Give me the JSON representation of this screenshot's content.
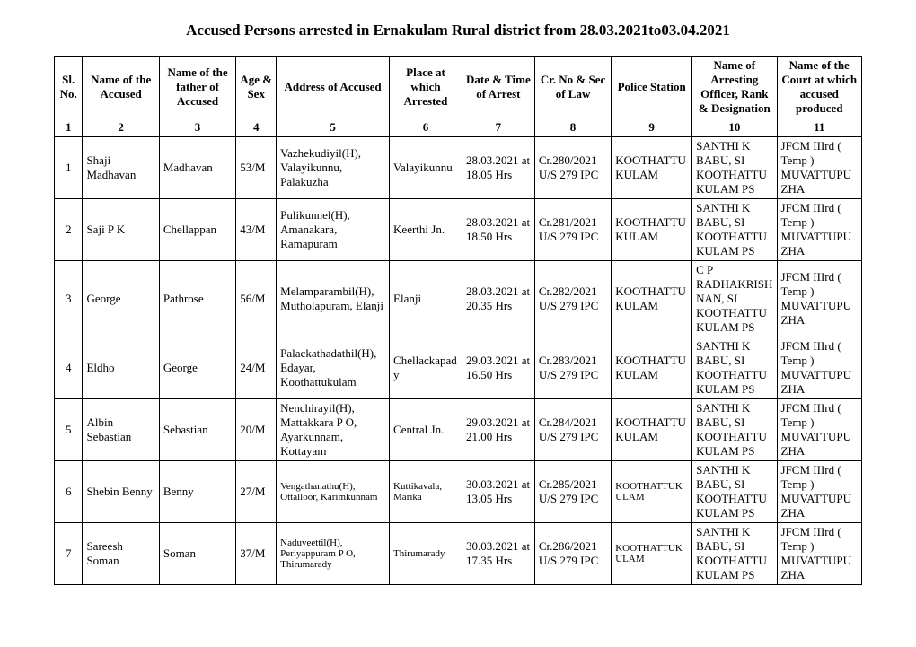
{
  "title": "Accused Persons arrested in  Ernakulam Rural  district from  28.03.2021to03.04.2021",
  "columns": [
    "Sl. No.",
    "Name of the Accused",
    "Name of the father of Accused",
    "Age & Sex",
    "Address of Accused",
    "Place at which Arrested",
    "Date & Time of Arrest",
    "Cr. No & Sec of Law",
    "Police Station",
    "Name of Arresting Officer, Rank & Designation",
    "Name of the Court at which accused produced"
  ],
  "colnums": [
    "1",
    "2",
    "3",
    "4",
    "5",
    "6",
    "7",
    "8",
    "9",
    "10",
    "11"
  ],
  "rows": [
    {
      "sl": "1",
      "name": "Shaji Madhavan",
      "father": "Madhavan",
      "age": "53/M",
      "address": "Vazhekudiyil(H), Valayikunnu, Palakuzha",
      "place": "Valayikunnu",
      "datetime": "28.03.2021 at 18.05 Hrs",
      "crno": "Cr.280/2021 U/S 279 IPC",
      "ps": "KOOTHATTUKULAM",
      "officer": "SANTHI K BABU, SI KOOTHATTUKULAM PS",
      "court": "JFCM IIIrd ( Temp ) MUVATTUPUZHA"
    },
    {
      "sl": "2",
      "name": "Saji P K",
      "father": "Chellappan",
      "age": "43/M",
      "address": "Pulikunnel(H), Amanakara, Ramapuram",
      "place": "Keerthi Jn.",
      "datetime": "28.03.2021 at 18.50 Hrs",
      "crno": "Cr.281/2021 U/S 279 IPC",
      "ps": "KOOTHATTUKULAM",
      "officer": "SANTHI K BABU, SI KOOTHATTUKULAM PS",
      "court": "JFCM IIIrd ( Temp ) MUVATTUPUZHA"
    },
    {
      "sl": "3",
      "name": "George",
      "father": "Pathrose",
      "age": "56/M",
      "address": "Melamparambil(H), Mutholapuram, Elanji",
      "place": "Elanji",
      "datetime": "28.03.2021 at 20.35 Hrs",
      "crno": "Cr.282/2021 U/S 279 IPC",
      "ps": "KOOTHATTUKULAM",
      "officer": "C P RADHAKRISHNAN, SI KOOTHATTUKULAM PS",
      "court": "JFCM IIIrd ( Temp ) MUVATTUPUZHA"
    },
    {
      "sl": "4",
      "name": "Eldho",
      "father": "George",
      "age": "24/M",
      "address": "Palackathadathil(H), Edayar, Koothattukulam",
      "place": "Chellackapady",
      "datetime": "29.03.2021 at 16.50 Hrs",
      "crno": "Cr.283/2021 U/S 279 IPC",
      "ps": "KOOTHATTUKULAM",
      "officer": "SANTHI K BABU, SI KOOTHATTUKULAM PS",
      "court": "JFCM IIIrd ( Temp ) MUVATTUPUZHA"
    },
    {
      "sl": "5",
      "name": "Albin Sebastian",
      "father": "Sebastian",
      "age": "20/M",
      "address": "Nenchirayil(H), Mattakkara P O, Ayarkunnam, Kottayam",
      "place": "Central Jn.",
      "datetime": "29.03.2021 at 21.00 Hrs",
      "crno": "Cr.284/2021 U/S 279 IPC",
      "ps": "KOOTHATTUKULAM",
      "officer": "SANTHI K BABU, SI KOOTHATTUKULAM PS",
      "court": "JFCM IIIrd ( Temp ) MUVATTUPUZHA"
    },
    {
      "sl": "6",
      "name": "Shebin Benny",
      "father": "Benny",
      "age": "27/M",
      "address": "Vengathanathu(H), Ottalloor, Karimkunnam",
      "place": "Kuttikavala, Marika",
      "datetime": "30.03.2021 at 13.05 Hrs",
      "crno": "Cr.285/2021 U/S 279 IPC",
      "ps": "KOOTHATTUKULAM",
      "officer": "SANTHI K BABU, SI KOOTHATTUKULAM PS",
      "court": "JFCM IIIrd ( Temp ) MUVATTUPUZHA"
    },
    {
      "sl": "7",
      "name": "Sareesh Soman",
      "father": "Soman",
      "age": "37/M",
      "address": "Naduveettil(H), Periyappuram P O, Thirumarady",
      "place": "Thirumarady",
      "datetime": "30.03.2021 at 17.35 Hrs",
      "crno": "Cr.286/2021 U/S 279 IPC",
      "ps": "KOOTHATTUKULAM",
      "officer": "SANTHI K BABU, SI KOOTHATTUKULAM PS",
      "court": "JFCM IIIrd ( Temp ) MUVATTUPUZHA"
    }
  ]
}
